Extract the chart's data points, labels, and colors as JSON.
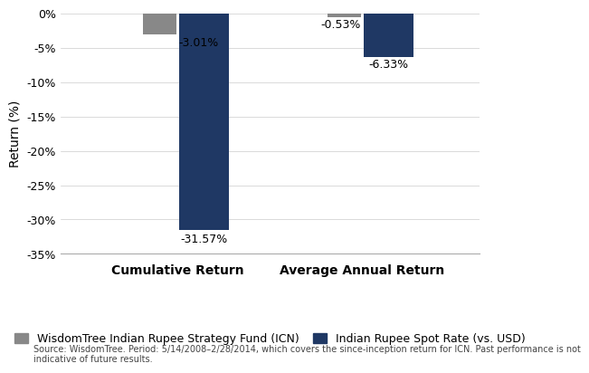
{
  "groups": [
    "Cumulative Return",
    "Average Annual Return"
  ],
  "series": [
    {
      "name": "WisdomTree Indian Rupee Strategy Fund (ICN)",
      "color": "#888888",
      "values": [
        -3.01,
        -0.53
      ],
      "bar_width": 0.08
    },
    {
      "name": "Indian Rupee Spot Rate (vs. USD)",
      "color": "#1F3864",
      "values": [
        -31.57,
        -6.33
      ],
      "bar_width": 0.12
    }
  ],
  "ylim": [
    -35,
    0
  ],
  "yticks": [
    0,
    -5,
    -10,
    -15,
    -20,
    -25,
    -30,
    -35
  ],
  "ylabel": "Return (%)",
  "group_centers": [
    0.28,
    0.72
  ],
  "xlim": [
    0.0,
    1.0
  ],
  "footnote": "Source: WisdomTree. Period: 5/14/2008–2/28/2014, which covers the since-inception return for ICN. Past performance is not\nindicative of future results.",
  "background_color": "#ffffff",
  "label_fontsize": 9,
  "axis_fontsize": 9,
  "legend_fontsize": 9,
  "ylabel_fontsize": 10,
  "xtick_fontsize": 10
}
